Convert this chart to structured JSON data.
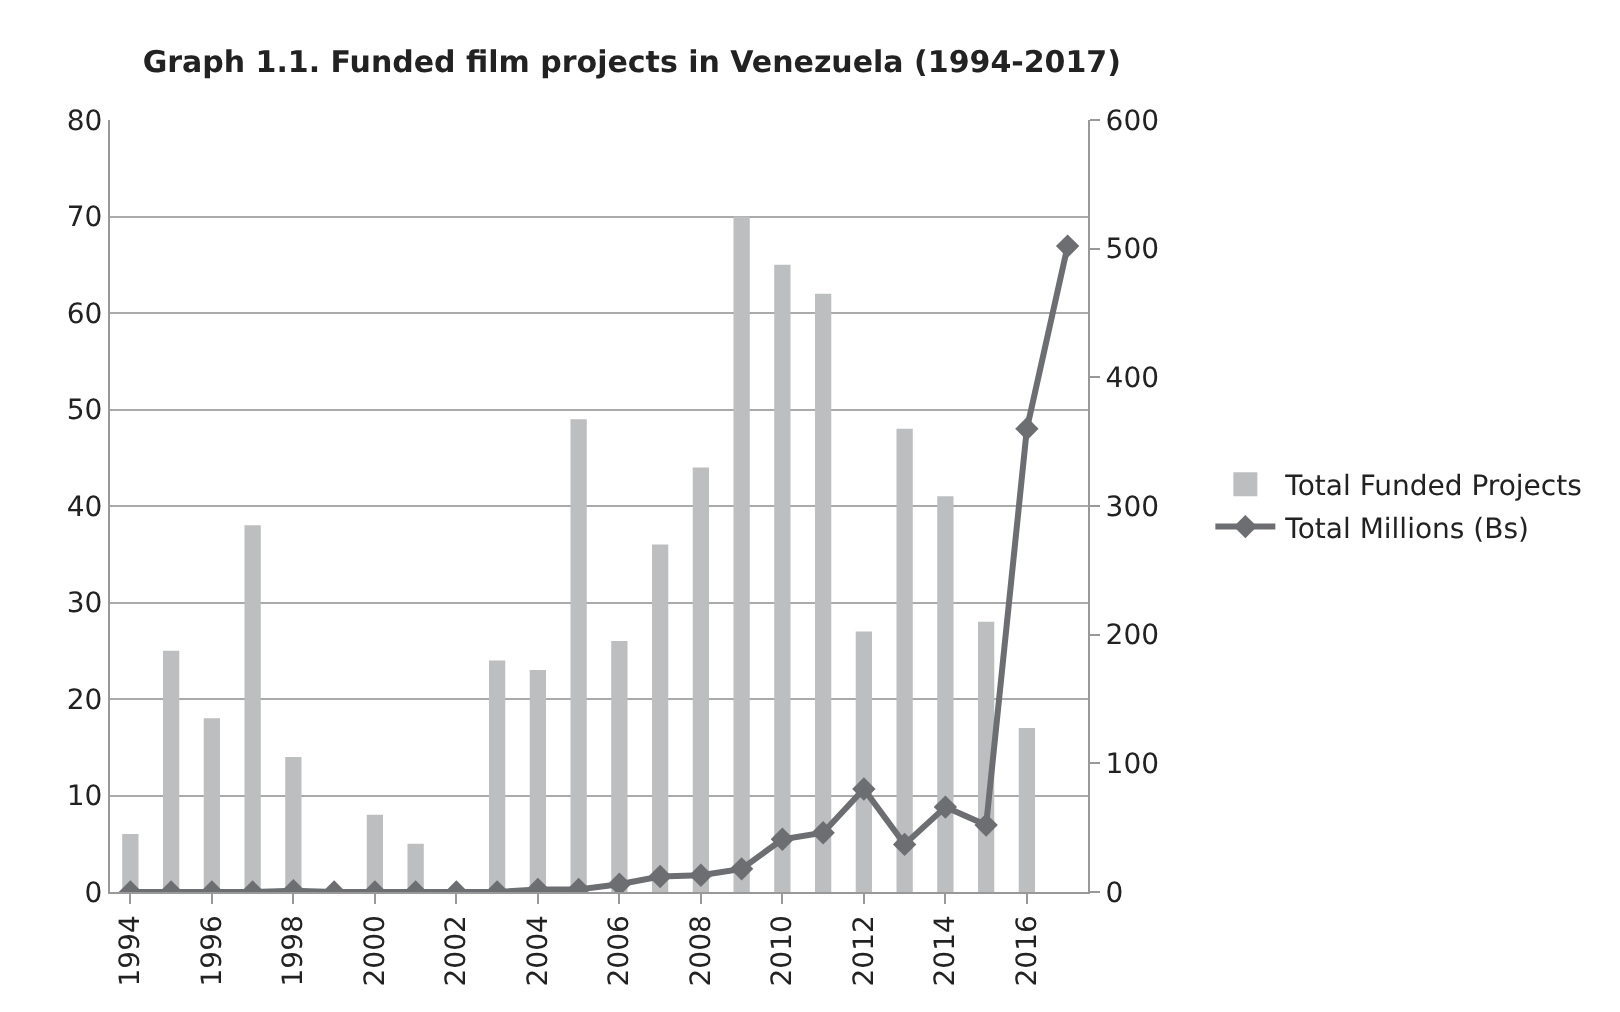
{
  "chart_data": {
    "type": "bar",
    "title": "Graph 1.1. Funded film projects in Venezuela (1994-2017)",
    "categories": [
      "1994",
      null,
      "1996",
      null,
      "1998",
      null,
      "2000",
      null,
      "2002",
      null,
      "2004",
      null,
      "2006",
      null,
      "2008",
      null,
      "2010",
      null,
      "2012",
      null,
      "2014",
      null,
      "2016",
      null
    ],
    "series": [
      {
        "name": "Total Funded Projects",
        "color": "#bdbec0",
        "values": [
          6,
          25,
          18,
          38,
          14,
          0,
          8,
          5,
          0,
          24,
          23,
          49,
          26,
          36,
          44,
          70,
          65,
          62,
          27,
          48,
          41,
          28,
          17,
          0
        ]
      },
      {
        "name": "Total Millions (Bs)",
        "type": "line",
        "axis": "y2",
        "color": "#6d6e71",
        "marker": "diamond",
        "line_style": "solid",
        "values": [
          0,
          0,
          0,
          0,
          1,
          0,
          0,
          0,
          0,
          0,
          2,
          2,
          6,
          12,
          13,
          18,
          41,
          46,
          80,
          37,
          66,
          52,
          360,
          502
        ]
      }
    ],
    "ylim": [
      0,
      80
    ],
    "yticks": [
      0,
      10,
      20,
      30,
      40,
      50,
      60,
      70,
      80
    ],
    "y2lim": [
      0,
      600
    ],
    "y2ticks": [
      0,
      100,
      200,
      300,
      400,
      500,
      600
    ],
    "grid": "y",
    "legend": "right"
  }
}
